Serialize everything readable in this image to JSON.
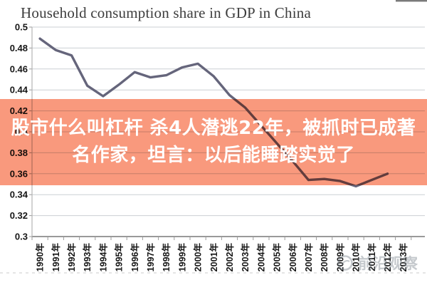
{
  "title": "Household consumption share in GDP in China",
  "chart_data": {
    "type": "line",
    "title": "Household consumption share in GDP in China",
    "categories": [
      "1990年",
      "1991年",
      "1992年",
      "1993年",
      "1994年",
      "1995年",
      "1996年",
      "1997年",
      "1998年",
      "1999年",
      "2000年",
      "2001年",
      "2002年",
      "2003年",
      "2004年",
      "2005年",
      "2006年",
      "2007年",
      "2008年",
      "2009年",
      "2010年",
      "2011年",
      "2012年",
      "2013年"
    ],
    "values": [
      0.489,
      0.478,
      0.473,
      0.444,
      0.434,
      0.445,
      0.457,
      0.452,
      0.454,
      0.4615,
      0.465,
      0.453,
      0.435,
      0.423,
      0.406,
      0.389,
      0.372,
      0.354,
      0.355,
      0.353,
      0.348,
      0.354,
      0.36,
      null
    ],
    "xlabel": "",
    "ylabel": "",
    "ylim": [
      0.3,
      0.5
    ],
    "ytick_labels": [
      "0.5",
      "0.48",
      "0.46",
      "0.44",
      "0.42",
      "0.4",
      "0.38",
      "0.36",
      "0.34",
      "0.32",
      "0.3"
    ],
    "grid": true,
    "legend": false,
    "line_color": "#65657b",
    "gridline_color": "#cbcfd3",
    "axis_color": "#9a9a9a",
    "tick_label_color": "#161616"
  },
  "overlay": {
    "lines": [
      "股市什么叫杠杆 杀4人潜逃22年，被抓时已成著",
      "名作家，坦言：以后能睡踏实觉了"
    ],
    "band_color": "#f9997d",
    "text_color": "#ffffff"
  },
  "watermark": {
    "text": "前沿观察"
  }
}
